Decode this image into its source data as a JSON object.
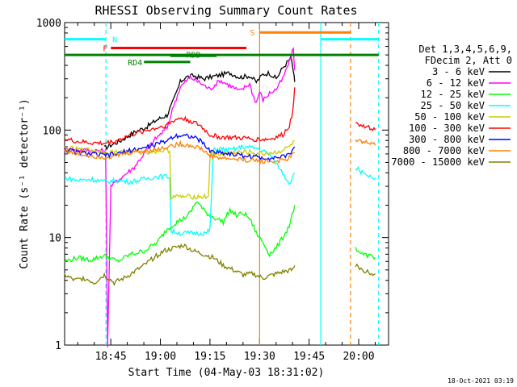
{
  "chart_data": {
    "type": "line",
    "title": "RHESSI Observing Summary Count Rates",
    "xlabel": "Start Time (04-May-03 18:31:02)",
    "ylabel": "Count Rate (s⁻¹ detector⁻¹)",
    "yscale": "log",
    "ylim": [
      1,
      1000
    ],
    "xlim_minutes_after_start": [
      0,
      98
    ],
    "x_ticks": [
      "18:45",
      "19:00",
      "19:15",
      "19:30",
      "19:45",
      "20:00"
    ],
    "y_ticks": [
      "1",
      "10",
      "100",
      "1000"
    ],
    "timestamp": "18-Oct-2021 03:19",
    "legend_header": [
      "Det 1,3,4,5,6,9,",
      "FDecim 2, Att 0"
    ],
    "x_units": "minutes after 18:31:02",
    "series": [
      {
        "name": "3 - 6 keV",
        "color": "#000000",
        "x": [
          12,
          17,
          21,
          25,
          28,
          31,
          33,
          35,
          36.5,
          39,
          42,
          46,
          50,
          53,
          56,
          58,
          60,
          62,
          64,
          66,
          68.5,
          69.2,
          69.6
        ],
        "y": [
          68,
          80,
          95,
          108,
          125,
          138,
          190,
          280,
          310,
          320,
          300,
          320,
          340,
          310,
          320,
          280,
          330,
          340,
          300,
          380,
          470,
          350,
          280
        ]
      },
      {
        "name": "6 - 12 keV",
        "color": "#ff00ff",
        "x": [
          0,
          12.4,
          13,
          14,
          18,
          21,
          24,
          27,
          31,
          33,
          35,
          36.5,
          38,
          41,
          44,
          47,
          50,
          53,
          56,
          57,
          58,
          59,
          60,
          62,
          64,
          66,
          68.5,
          69.2,
          69.6
        ],
        "y": [
          66,
          64,
          1,
          30,
          38,
          45,
          60,
          80,
          105,
          170,
          250,
          280,
          310,
          275,
          240,
          290,
          260,
          230,
          270,
          210,
          180,
          230,
          190,
          220,
          240,
          300,
          480,
          580,
          360
        ]
      },
      {
        "name": "12 - 25 keV",
        "color": "#00ff00",
        "x": [
          0,
          4,
          8,
          12,
          16,
          20,
          24,
          28,
          31,
          34,
          36,
          38,
          40,
          42,
          44,
          46,
          48,
          50,
          52,
          54,
          56,
          58,
          60,
          62,
          64,
          66,
          68,
          69.6
        ],
        "y": [
          6,
          6.5,
          6.2,
          6.8,
          6,
          7,
          7.5,
          9,
          12,
          14,
          15,
          17,
          22,
          18,
          16,
          15,
          14,
          18,
          16,
          17,
          15,
          11,
          9,
          7,
          8,
          10,
          13,
          20
        ]
      },
      {
        "name": "25 - 50 keV",
        "color": "#00ffff",
        "x": [
          0,
          4,
          8,
          12,
          16,
          20,
          24,
          28,
          31.8,
          32.2,
          35,
          40,
          43,
          44,
          45,
          46,
          47,
          48,
          50,
          54,
          58,
          62,
          66,
          68,
          69.6
        ],
        "y": [
          36,
          34,
          35,
          33,
          34,
          33,
          35,
          37,
          37,
          11.5,
          11,
          11,
          11,
          12,
          65,
          66,
          67,
          66,
          65,
          70,
          68,
          60,
          40,
          32,
          40
        ]
      },
      {
        "name": "50 - 100 keV",
        "color": "#cccc00",
        "x": [
          0,
          4,
          8,
          12,
          16,
          20,
          24,
          28,
          31.8,
          32.2,
          35,
          40,
          43.5,
          44,
          47,
          52,
          56,
          60,
          64,
          66,
          68,
          69.6
        ],
        "y": [
          68,
          66,
          65,
          63,
          62,
          63,
          62,
          64,
          65,
          24,
          24,
          24,
          24,
          60,
          60,
          62,
          62,
          60,
          62,
          65,
          70,
          80
        ]
      },
      {
        "name": "100 - 300 keV",
        "color": "#ff0000",
        "x": [
          0,
          4,
          8,
          12,
          16,
          20,
          24,
          28,
          31,
          33,
          35,
          38,
          41,
          44,
          47,
          50,
          54,
          58,
          62,
          66,
          68,
          69,
          69.6
        ],
        "y": [
          82,
          78,
          76,
          75,
          80,
          90,
          98,
          105,
          112,
          122,
          130,
          122,
          110,
          90,
          86,
          85,
          84,
          82,
          82,
          90,
          110,
          150,
          250
        ]
      },
      {
        "name": "300 - 800 keV",
        "color": "#0000ff",
        "x": [
          0,
          4,
          8,
          12,
          16,
          20,
          24,
          28,
          31,
          33,
          35,
          38,
          41,
          44,
          47,
          50,
          54,
          58,
          62,
          66,
          68,
          69.6
        ],
        "y": [
          66,
          62,
          60,
          58,
          60,
          65,
          68,
          74,
          80,
          88,
          90,
          88,
          80,
          64,
          62,
          60,
          58,
          56,
          55,
          56,
          60,
          70
        ]
      },
      {
        "name": "800 - 7000 keV",
        "color": "#ff8000",
        "x": [
          0,
          4,
          8,
          12,
          16,
          20,
          24,
          28,
          31,
          33,
          35,
          38,
          41,
          44,
          47,
          50,
          54,
          58,
          62,
          66,
          68,
          69.6
        ],
        "y": [
          65,
          60,
          58,
          56,
          58,
          62,
          64,
          66,
          70,
          72,
          74,
          72,
          68,
          58,
          55,
          54,
          53,
          52,
          51,
          52,
          55,
          62
        ]
      },
      {
        "name": "7000 - 15000 keV",
        "color": "#808000",
        "x": [
          0,
          3,
          6,
          9,
          12,
          15,
          18,
          21,
          24,
          27,
          30,
          33,
          36,
          39,
          42,
          45,
          48,
          51,
          54,
          57,
          60,
          63,
          66,
          69,
          69.6
        ],
        "y": [
          4.5,
          4.0,
          4.2,
          3.8,
          4.5,
          3.8,
          4.2,
          4.8,
          5.5,
          6.5,
          7.5,
          8.0,
          8.5,
          7.5,
          7.0,
          6.5,
          5.5,
          5.0,
          4.5,
          4.6,
          4.2,
          4.5,
          4.8,
          5.0,
          5.5
        ]
      }
    ],
    "series_after_gap": [
      {
        "name": "100 - 300 keV",
        "x": [
          88,
          90,
          92,
          94
        ],
        "y": [
          120,
          110,
          105,
          100
        ]
      },
      {
        "name": "800 - 7000 keV",
        "x": [
          88,
          90,
          92,
          94
        ],
        "y": [
          80,
          78,
          75,
          72
        ]
      },
      {
        "name": "25 - 50 keV",
        "x": [
          88,
          90,
          92,
          94
        ],
        "y": [
          45,
          40,
          38,
          36
        ]
      },
      {
        "name": "12 - 25 keV",
        "x": [
          88,
          90,
          92,
          94
        ],
        "y": [
          8,
          7,
          6.8,
          6.5
        ]
      },
      {
        "name": "7000 - 15000 keV",
        "x": [
          88,
          90,
          92,
          94
        ],
        "y": [
          5.5,
          5,
          4.8,
          4.6
        ]
      }
    ],
    "flag_bars": [
      {
        "label": "N",
        "color": "#00ffff",
        "segments": [
          [
            0,
            12.5
          ],
          [
            77.5,
            95
          ]
        ],
        "y": 700
      },
      {
        "label": "S",
        "color": "#ff8000",
        "segments": [
          [
            59,
            86.5
          ]
        ],
        "y": 810
      },
      {
        "label": "F",
        "color": "#ff0000",
        "segments": [
          [
            14,
            55
          ]
        ],
        "y": 580
      },
      {
        "label": "",
        "color": "#008000",
        "segments": [
          [
            0,
            95
          ]
        ],
        "y": 500
      },
      {
        "label": "RDD",
        "color": "#008000",
        "segments": [
          [
            32,
            46
          ]
        ],
        "y": 490
      },
      {
        "label": "RD4",
        "color": "#008000",
        "segments": [
          [
            24,
            38
          ]
        ],
        "y": 430
      }
    ],
    "vertical_markers": [
      {
        "x": 12.5,
        "color": "#00ffff",
        "style": "dashed"
      },
      {
        "x": 59.0,
        "color": "#ff8000",
        "style": "solid"
      },
      {
        "x": 77.5,
        "color": "#00ffff",
        "style": "solid"
      },
      {
        "x": 86.5,
        "color": "#ff8000",
        "style": "dashed"
      },
      {
        "x": 95.0,
        "color": "#00ffff",
        "style": "dashed"
      }
    ]
  }
}
